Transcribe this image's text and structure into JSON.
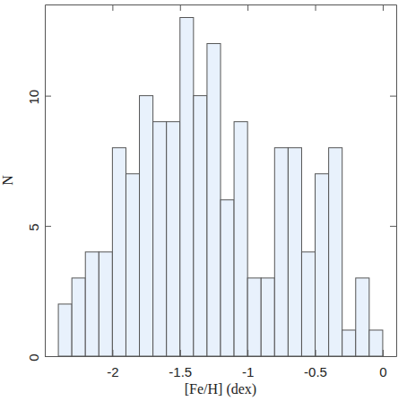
{
  "chart_data": {
    "type": "histogram",
    "x_label": "[Fe/H] (dex)",
    "y_label": "N",
    "bins": [
      -2.4,
      -2.3,
      -2.2,
      -2.1,
      -2.0,
      -1.9,
      -1.8,
      -1.7,
      -1.6,
      -1.5,
      -1.4,
      -1.3,
      -1.2,
      -1.1,
      -1.0,
      -0.9,
      -0.8,
      -0.7,
      -0.6,
      -0.5,
      -0.4,
      -0.3,
      -0.2,
      -0.1,
      0.0
    ],
    "values": [
      2,
      3,
      4,
      4,
      8,
      7,
      10,
      9,
      9,
      13,
      10,
      12,
      6,
      9,
      3,
      3,
      8,
      8,
      4,
      7,
      8,
      1,
      3,
      1
    ],
    "color": "#e8f1fc",
    "xlim": [
      -2.5,
      0.1
    ],
    "xticks": [
      -2,
      -1.5,
      -1,
      -0.5,
      0
    ],
    "ylim": [
      0,
      13.5
    ],
    "yticks": [
      0,
      5,
      10
    ],
    "grid": false
  }
}
